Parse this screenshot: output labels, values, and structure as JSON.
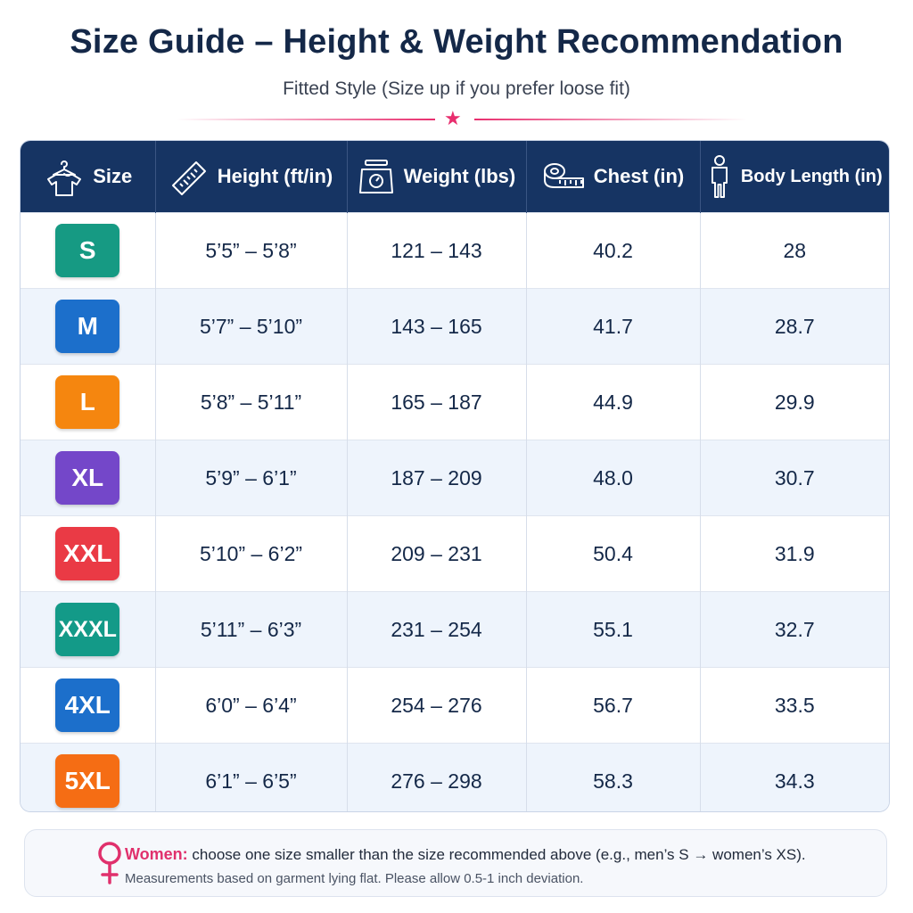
{
  "title": "Size Guide – Height & Weight Recommendation",
  "subtitle": "Fitted Style (Size up if you prefer loose fit)",
  "divider_icon": "star-icon",
  "table": {
    "headers": [
      {
        "label": "Size",
        "icon": "tshirt-hanger-icon"
      },
      {
        "label": "Height (ft/in)",
        "icon": "ruler-icon"
      },
      {
        "label": "Weight (lbs)",
        "icon": "scale-icon"
      },
      {
        "label": "Chest (in)",
        "icon": "tape-measure-icon"
      },
      {
        "label": "Body Length (in)",
        "icon": "person-icon"
      }
    ],
    "rows": [
      {
        "size": "S",
        "color": "#169a83",
        "height": "5’5” – 5’8”",
        "weight": "121 – 143",
        "chest": "40.2",
        "length": "28"
      },
      {
        "size": "M",
        "color": "#1c6fcb",
        "height": "5’7” – 5’10”",
        "weight": "143 – 165",
        "chest": "41.7",
        "length": "28.7"
      },
      {
        "size": "L",
        "color": "#f5860f",
        "height": "5’8” – 5’11”",
        "weight": "165 – 187",
        "chest": "44.9",
        "length": "29.9"
      },
      {
        "size": "XL",
        "color": "#7447c9",
        "height": "5’9” – 6’1”",
        "weight": "187 – 209",
        "chest": "48.0",
        "length": "30.7"
      },
      {
        "size": "XXL",
        "color": "#ea3a45",
        "height": "5’10” – 6’2”",
        "weight": "209 – 231",
        "chest": "50.4",
        "length": "31.9"
      },
      {
        "size": "XXXL",
        "color": "#139a88",
        "height": "5’11” – 6’3”",
        "weight": "231 – 254",
        "chest": "55.1",
        "length": "32.7"
      },
      {
        "size": "4XL",
        "color": "#1c6fcb",
        "height": "6’0” – 6’4”",
        "weight": "254 – 276",
        "chest": "56.7",
        "length": "33.5"
      },
      {
        "size": "5XL",
        "color": "#f56d14",
        "height": "6’1” – 6’5”",
        "weight": "276 – 298",
        "chest": "58.3",
        "length": "34.3"
      }
    ]
  },
  "note": {
    "icon": "female-symbol-icon",
    "accent_label": "Women:",
    "line1": "choose one size smaller than the size recommended above (e.g., men’s S → women’s XS).",
    "line2": "Measurements based on garment lying flat. Please allow 0.5-1 inch deviation."
  },
  "colors": {
    "header_bg": "#163463",
    "title": "#142848",
    "accent": "#e82e6e",
    "alt_row": "#eef4fc"
  }
}
